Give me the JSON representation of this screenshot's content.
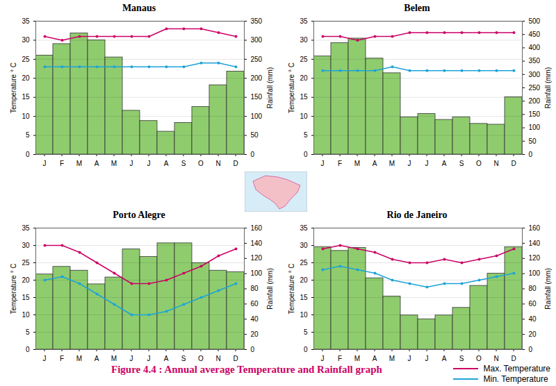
{
  "chart_data": [
    {
      "type": "bar",
      "title": "Manaus",
      "categories": [
        "J",
        "F",
        "M",
        "A",
        "M",
        "J",
        "J",
        "A",
        "S",
        "O",
        "N",
        "D"
      ],
      "ylabel": "Temperature ° C",
      "y2label": "Rainfall (mm)",
      "ylim": [
        0,
        35
      ],
      "yticks": [
        0,
        5,
        10,
        15,
        20,
        25,
        30,
        35
      ],
      "y2lim": [
        0,
        350
      ],
      "y2ticks": [
        0,
        50,
        100,
        150,
        200,
        250,
        300,
        350
      ],
      "grid": true,
      "series": [
        {
          "type": "bar",
          "axis": "y2",
          "color": "#8fcc6e",
          "values": [
            260,
            290,
            318,
            300,
            255,
            115,
            88,
            60,
            83,
            125,
            182,
            218
          ]
        },
        {
          "name": "Max. Temperature",
          "type": "line",
          "marker": "circle",
          "color": "#cc0066",
          "values": [
            31,
            30,
            31,
            31,
            31,
            31,
            31,
            33,
            33,
            33,
            32,
            31
          ]
        },
        {
          "name": "Min. Temperature",
          "type": "line",
          "marker": "circle",
          "color": "#1ca3d8",
          "values": [
            23,
            23,
            23,
            23,
            23,
            23,
            23,
            23,
            23,
            24,
            24,
            23
          ]
        }
      ]
    },
    {
      "type": "bar",
      "title": "Belem",
      "categories": [
        "J",
        "F",
        "M",
        "A",
        "M",
        "J",
        "J",
        "A",
        "S",
        "O",
        "N",
        "D"
      ],
      "ylabel": "Temperature ° C",
      "y2label": "Rainfall (mm)",
      "ylim": [
        0,
        35
      ],
      "yticks": [
        0,
        5,
        10,
        15,
        20,
        25,
        30,
        35
      ],
      "y2lim": [
        0,
        500
      ],
      "y2ticks": [
        0,
        50,
        100,
        150,
        200,
        250,
        300,
        350,
        400,
        450,
        500
      ],
      "grid": true,
      "series": [
        {
          "type": "bar",
          "axis": "y2",
          "color": "#8fcc6e",
          "values": [
            368,
            418,
            435,
            360,
            305,
            140,
            152,
            130,
            140,
            115,
            112,
            215
          ]
        },
        {
          "name": "Max. Temperature",
          "type": "line",
          "marker": "circle",
          "color": "#cc0066",
          "values": [
            31,
            31,
            30,
            31,
            31,
            32,
            32,
            32,
            32,
            32,
            32,
            32
          ]
        },
        {
          "name": "Min. Temperature",
          "type": "line",
          "marker": "circle",
          "color": "#1ca3d8",
          "values": [
            22,
            22,
            22,
            22,
            23,
            22,
            22,
            22,
            22,
            22,
            22,
            22
          ]
        }
      ]
    },
    {
      "type": "bar",
      "title": "Porto Alegre",
      "categories": [
        "J",
        "F",
        "M",
        "A",
        "M",
        "J",
        "J",
        "A",
        "S",
        "O",
        "N",
        "D"
      ],
      "ylabel": "Temperature ° C",
      "y2label": "Rainfall (mm)",
      "ylim": [
        0,
        35
      ],
      "yticks": [
        0,
        5,
        10,
        15,
        20,
        25,
        30,
        35
      ],
      "y2lim": [
        0,
        160
      ],
      "y2ticks": [
        0,
        20,
        40,
        60,
        80,
        100,
        120,
        140,
        160
      ],
      "grid": true,
      "series": [
        {
          "type": "bar",
          "axis": "y2",
          "color": "#8fcc6e",
          "values": [
            99,
            109,
            104,
            86,
            95,
            132,
            122,
            140,
            140,
            114,
            104,
            102
          ]
        },
        {
          "name": "Max. Temperature",
          "type": "line",
          "marker": "circle",
          "color": "#cc0066",
          "values": [
            30,
            30,
            28,
            25,
            22,
            19,
            19,
            20,
            22,
            24,
            27,
            29
          ]
        },
        {
          "name": "Min. Temperature",
          "type": "line",
          "marker": "circle",
          "color": "#1ca3d8",
          "values": [
            20,
            21,
            19,
            16,
            13,
            10,
            10,
            11,
            13,
            15,
            17,
            19
          ]
        }
      ]
    },
    {
      "type": "bar",
      "title": "Rio de Janeiro",
      "categories": [
        "J",
        "F",
        "M",
        "A",
        "M",
        "J",
        "J",
        "A",
        "S",
        "O",
        "N",
        "D"
      ],
      "ylabel": "Temperature ° C",
      "y2label": "Rainfall (mm)",
      "ylim": [
        0,
        35
      ],
      "yticks": [
        0,
        5,
        10,
        15,
        20,
        25,
        30,
        35
      ],
      "y2lim": [
        0,
        160
      ],
      "y2ticks": [
        0,
        20,
        40,
        60,
        80,
        100,
        120,
        140,
        160
      ],
      "grid": true,
      "series": [
        {
          "type": "bar",
          "axis": "y2",
          "color": "#8fcc6e",
          "values": [
            135,
            130,
            134,
            94,
            70,
            45,
            40,
            45,
            55,
            84,
            100,
            135
          ]
        },
        {
          "name": "Max. Temperature",
          "type": "line",
          "marker": "circle",
          "color": "#cc0066",
          "values": [
            29,
            30,
            29,
            28,
            26,
            25,
            25,
            26,
            25,
            26,
            27,
            29
          ]
        },
        {
          "name": "Min. Temperature",
          "type": "line",
          "marker": "circle",
          "color": "#1ca3d8",
          "values": [
            23,
            24,
            23,
            22,
            20,
            19,
            18,
            19,
            19,
            20,
            21,
            22
          ]
        }
      ]
    }
  ],
  "caption": "Figure 4.4 : Annual average Temperature and Rainfall graph",
  "legend": "bottom right"
}
